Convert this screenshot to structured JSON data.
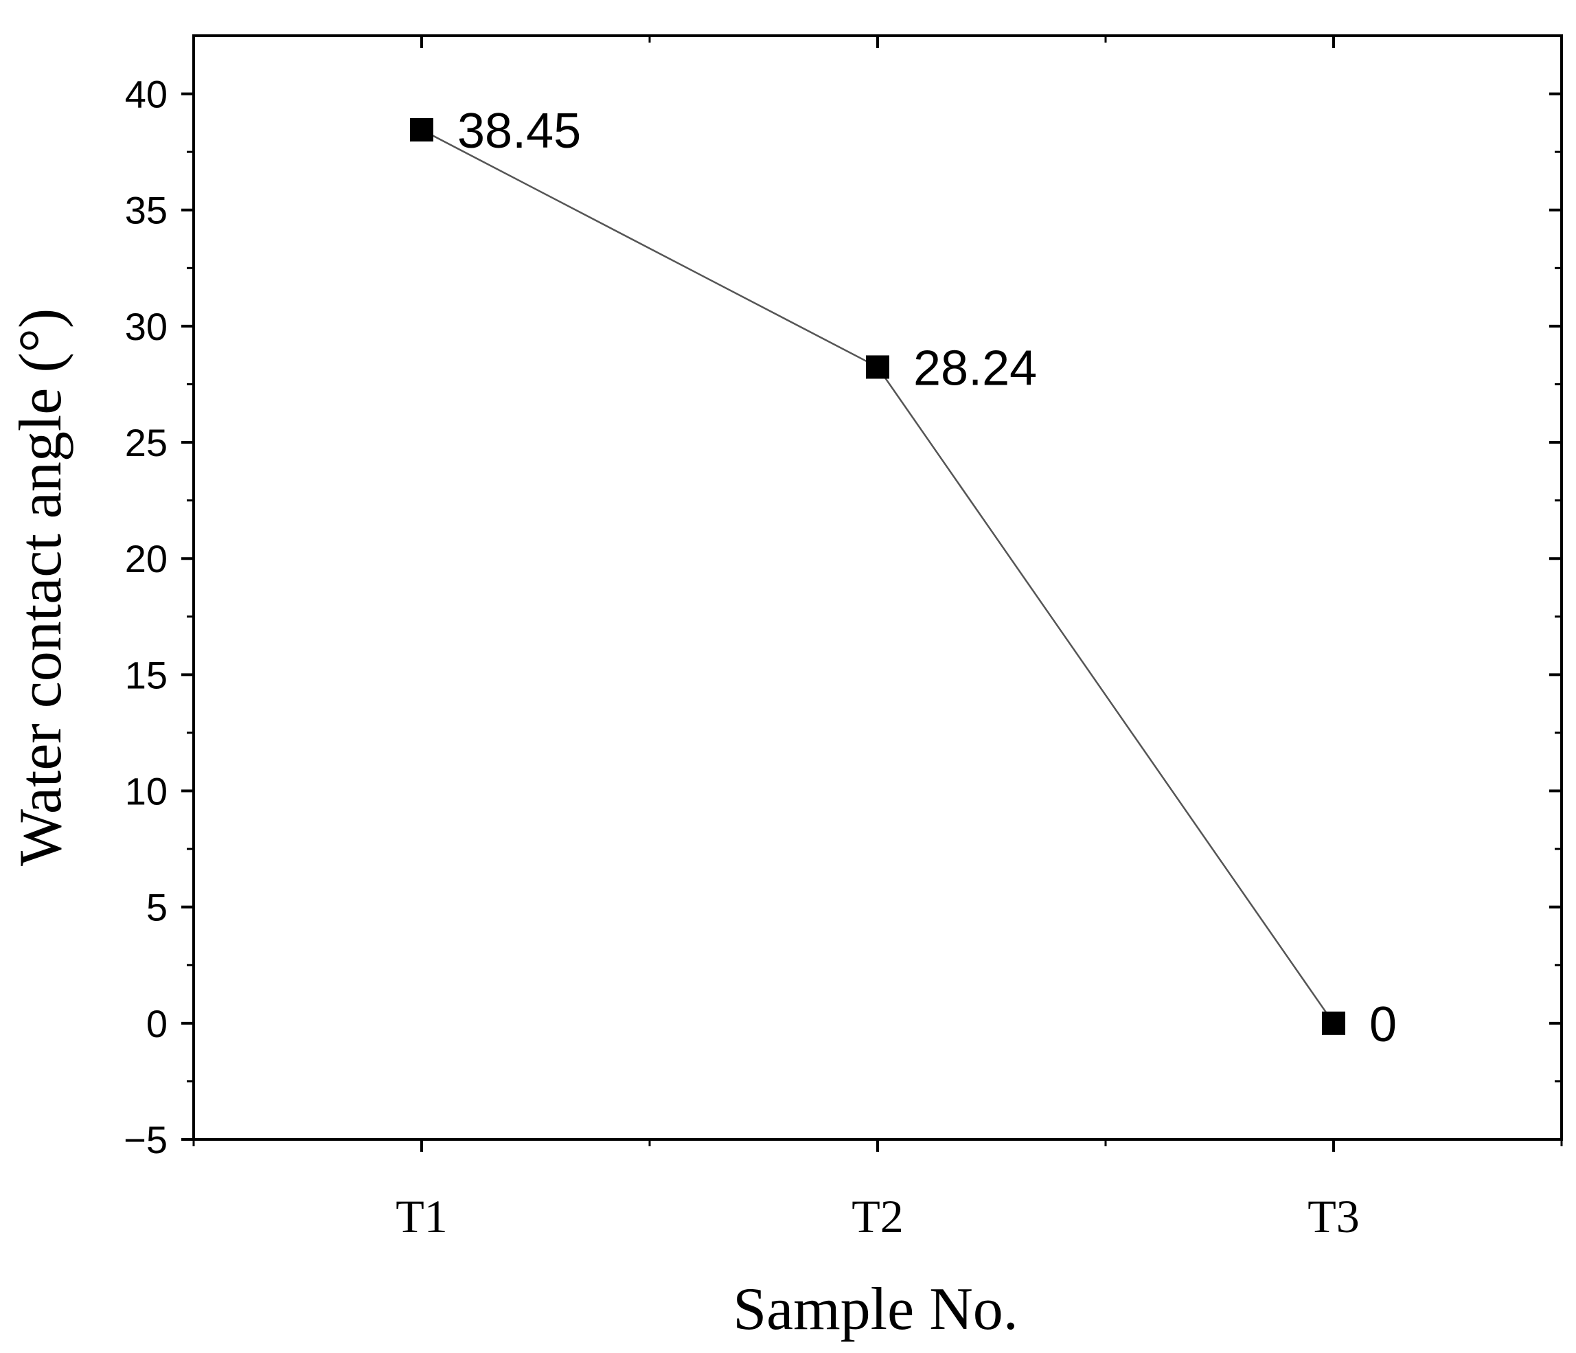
{
  "chart_data": {
    "type": "line",
    "title": "",
    "xlabel": "Sample No.",
    "ylabel": "Water contact angle (°)",
    "categories": [
      "T1",
      "T2",
      "T3"
    ],
    "series": [
      {
        "values": [
          38.45,
          28.24,
          0
        ],
        "color": "#000000",
        "line_color": "#555555",
        "marker": "square"
      }
    ],
    "data_labels": [
      "38.45",
      "28.24",
      "0"
    ],
    "ylim": [
      -5,
      42.5
    ],
    "yticks": [
      40,
      35,
      30,
      25,
      20,
      15,
      10,
      5,
      0,
      -5
    ],
    "ytick_labels": [
      "40",
      "35",
      "30",
      "25",
      "20",
      "15",
      "10",
      "5",
      "0",
      "−5"
    ],
    "y_minor_step": 2.5,
    "grid": false,
    "legend": "none"
  }
}
